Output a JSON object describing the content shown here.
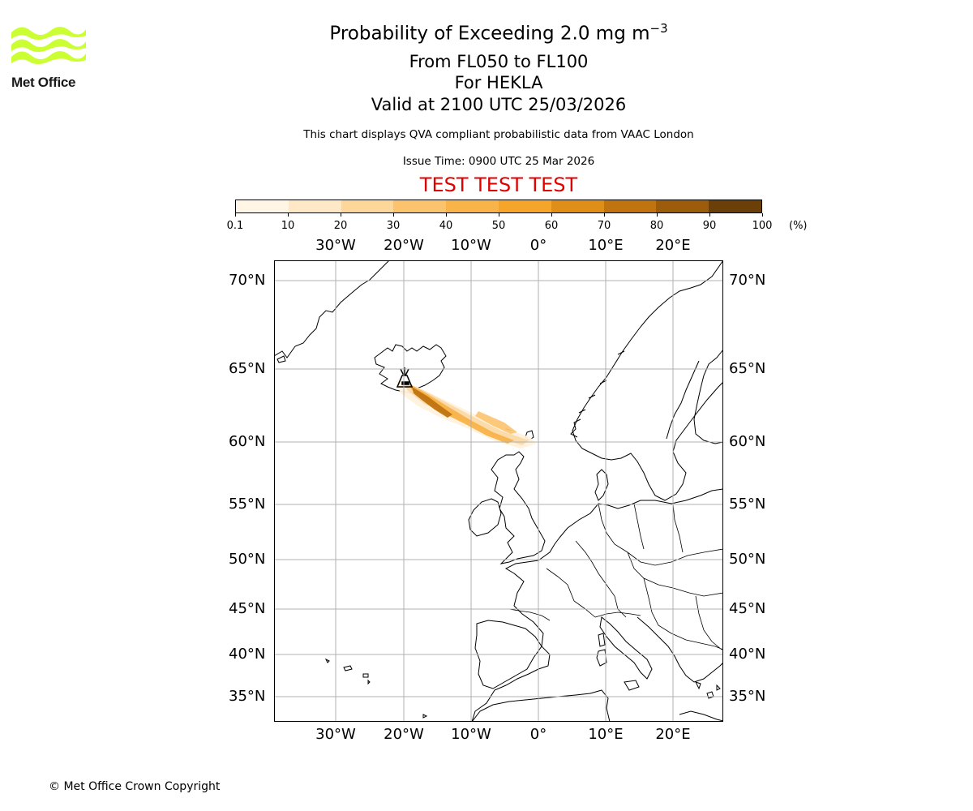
{
  "header": {
    "logo_text": "Met Office",
    "title": "Probability of Exceeding 2.0 mg m",
    "title_exponent": "−3",
    "flight_levels": "From FL050 to FL100",
    "volcano": "For HEKLA",
    "valid": "Valid at 2100 UTC 25/03/2026",
    "description": "This chart displays QVA compliant probabilistic data from VAAC London",
    "issue_time": "Issue Time: 0900 UTC 25 Mar 2026",
    "test_banner": "TEST TEST TEST"
  },
  "colorbar": {
    "ticks": [
      "0.1",
      "10",
      "20",
      "30",
      "40",
      "50",
      "60",
      "70",
      "80",
      "90",
      "100"
    ],
    "unit": "(%)",
    "colors": [
      "#fff6e6",
      "#ffe8c6",
      "#fdd69a",
      "#fcc36e",
      "#f8b349",
      "#f6a52b",
      "#df8e18",
      "#c07410",
      "#9c5c0c",
      "#6b3f08"
    ]
  },
  "map": {
    "longitude_labels": [
      "30°W",
      "20°W",
      "10°W",
      "0°",
      "10°E",
      "20°E"
    ],
    "latitude_labels": [
      "70°N",
      "65°N",
      "60°N",
      "55°N",
      "50°N",
      "45°N",
      "40°N",
      "35°N"
    ],
    "volcano_marker": "hekla-volcano",
    "accent_color": "#f6a52b",
    "plume_color_dark": "#9c5c0c"
  },
  "footer": {
    "copyright": "© Met Office Crown Copyright"
  }
}
